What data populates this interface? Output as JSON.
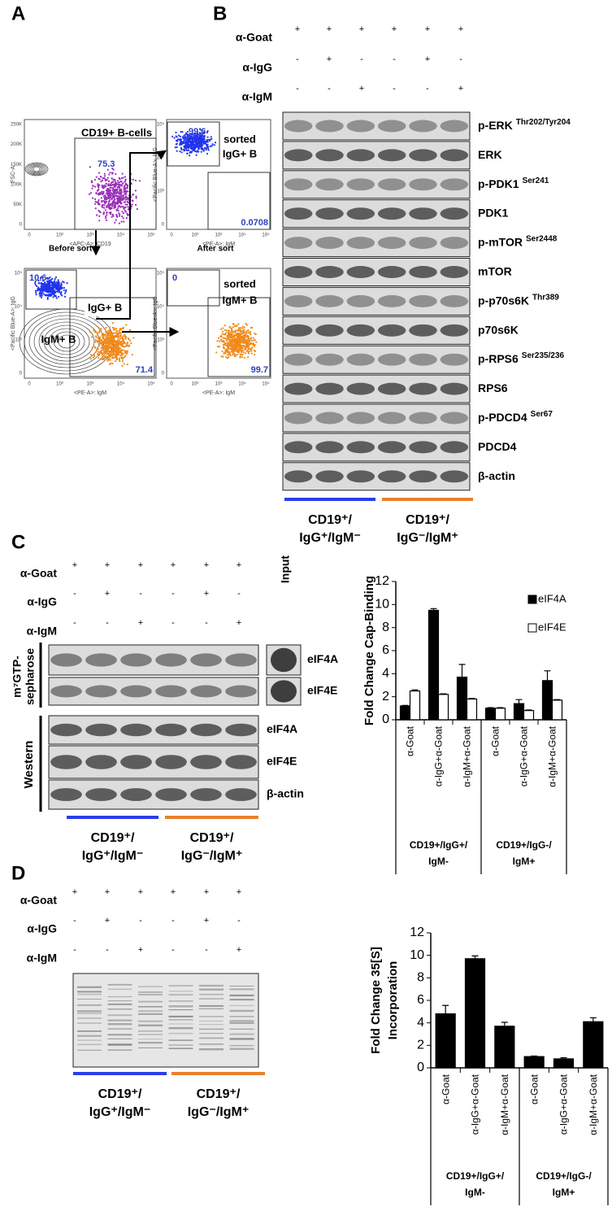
{
  "panel_a": {
    "label": "A",
    "x_ticks": [
      "0",
      "10²",
      "10³",
      "10⁴",
      "10⁵"
    ],
    "y_ticks": [
      "0",
      "10³",
      "10⁴",
      "10⁵"
    ],
    "fsc_ticks": [
      "0",
      "50K",
      "100K",
      "150K",
      "200K",
      "250K"
    ],
    "plots": [
      {
        "title": "CD19+ B-cells",
        "numbers": [
          75.3
        ],
        "y_label": "FSC-A",
        "x_label": "<APC-A>: CD19",
        "caption": "Before sort"
      },
      {
        "note": [
          "sorted",
          "IgG+ B"
        ],
        "numbers": [
          99.6,
          0.0708
        ],
        "y_label": "<Pacific Blue-A>: IgG",
        "x_label": "<PE-A>: IgM",
        "caption": "After sort"
      },
      {
        "gates": [
          "IgG+ B",
          "IgM+ B"
        ],
        "numbers": [
          10.6,
          71.4
        ],
        "y_label": "<Pacific Blue-A>: IgG",
        "x_label": "<PE-A>: IgM"
      },
      {
        "note": [
          "sorted",
          "IgM+ B"
        ],
        "numbers": [
          0,
          99.7
        ],
        "y_label": "<Pacific Blue-A>: IgG",
        "x_label": "<PE-A>: IgM"
      }
    ]
  },
  "panel_b": {
    "label": "B",
    "treatments": [
      {
        "label": "α-Goat",
        "signs": [
          "+",
          "+",
          "+",
          "+",
          "+",
          "+"
        ]
      },
      {
        "label": "α-IgG",
        "signs": [
          "-",
          "+",
          "-",
          "-",
          "+",
          "-"
        ]
      },
      {
        "label": "α-IgM",
        "signs": [
          "-",
          "-",
          "+",
          "-",
          "-",
          "+"
        ]
      }
    ],
    "blots": [
      {
        "name": "p-ERK",
        "site": "Thr202/Tyr204"
      },
      {
        "name": "ERK"
      },
      {
        "name": "p-PDK1",
        "site": "Ser241"
      },
      {
        "name": "PDK1"
      },
      {
        "name": "p-mTOR",
        "site": "Ser2448"
      },
      {
        "name": "mTOR"
      },
      {
        "name": "p-p70s6K",
        "site": "Thr389"
      },
      {
        "name": "p70s6K"
      },
      {
        "name": "p-RPS6",
        "site": "Ser235/236"
      },
      {
        "name": "RPS6"
      },
      {
        "name": "p-PDCD4",
        "site": "Ser67"
      },
      {
        "name": "PDCD4"
      },
      {
        "name": "β-actin"
      }
    ],
    "groups": [
      {
        "lines": [
          "CD19⁺/",
          "IgG⁺/IgM⁻"
        ]
      },
      {
        "lines": [
          "CD19⁺/",
          "IgG⁻/IgM⁺"
        ]
      }
    ]
  },
  "panel_c": {
    "label": "C",
    "treatments": [
      {
        "label": "α-Goat",
        "signs": [
          "+",
          "+",
          "+",
          "+",
          "+",
          "+"
        ]
      },
      {
        "label": "α-IgG",
        "signs": [
          "-",
          "+",
          "-",
          "-",
          "+",
          "-"
        ]
      },
      {
        "label": "α-IgM",
        "signs": [
          "-",
          "-",
          "+",
          "-",
          "-",
          "+"
        ]
      }
    ],
    "input_label": "Input",
    "pulldown_label": [
      "m⁷GTP-",
      "sepharose"
    ],
    "western_label": "Western",
    "pulldown_blots": [
      "eIF4A",
      "eIF4E"
    ],
    "western_blots": [
      "eIF4A",
      "eIF4E",
      "β-actin"
    ],
    "groups": [
      {
        "lines": [
          "CD19⁺/",
          "IgG⁺/IgM⁻"
        ]
      },
      {
        "lines": [
          "CD19⁺/",
          "IgG⁻/IgM⁺"
        ]
      }
    ]
  },
  "panel_d": {
    "label": "D",
    "treatments": [
      {
        "label": "α-Goat",
        "signs": [
          "+",
          "+",
          "+",
          "+",
          "+",
          "+"
        ]
      },
      {
        "label": "α-IgG",
        "signs": [
          "-",
          "+",
          "-",
          "-",
          "+",
          "-"
        ]
      },
      {
        "label": "α-IgM",
        "signs": [
          "-",
          "-",
          "+",
          "-",
          "-",
          "+"
        ]
      }
    ],
    "groups": [
      {
        "lines": [
          "CD19⁺/",
          "IgG⁺/IgM⁻"
        ]
      },
      {
        "lines": [
          "CD19⁺/",
          "IgG⁻/IgM⁺"
        ]
      }
    ]
  },
  "chart_data": [
    {
      "type": "bar",
      "y_label": [
        "Fold Change Cap-Binding"
      ],
      "categories": [
        "α-Goat",
        "α-IgG+α-Goat",
        "α-IgM+α-Goat",
        "α-Goat",
        "α-IgG+α-Goat",
        "α-IgM+α-Goat"
      ],
      "groups": [
        {
          "lines": [
            "CD19+/IgG+/",
            "IgM-"
          ]
        },
        {
          "lines": [
            "CD19+/IgG-/",
            "IgM+"
          ]
        }
      ],
      "series": [
        {
          "name": "eIF4A",
          "color": "#000000",
          "values": [
            1.2,
            9.5,
            3.7,
            1.0,
            1.4,
            3.4
          ],
          "errors": [
            0.05,
            0.15,
            1.1,
            0.05,
            0.35,
            0.85
          ]
        },
        {
          "name": "eIF4E",
          "color": "#ffffff",
          "values": [
            2.5,
            2.2,
            1.8,
            1.0,
            0.8,
            1.7
          ],
          "errors": [
            0.1,
            0.05,
            0.05,
            0.05,
            0.05,
            0.05
          ]
        }
      ],
      "legend": "upper right",
      "ylim": [
        0,
        12
      ],
      "yticks": [
        0,
        2,
        4,
        6,
        8,
        10,
        12
      ]
    },
    {
      "type": "bar",
      "y_label": [
        "Fold Change 35[S]",
        "Incorporation"
      ],
      "categories": [
        "α-Goat",
        "α-IgG+α-Goat",
        "α-IgM+α-Goat",
        "α-Goat",
        "α-IgG+α-Goat",
        "α-IgM+α-Goat"
      ],
      "groups": [
        {
          "lines": [
            "CD19+/IgG+/",
            "IgM-"
          ]
        },
        {
          "lines": [
            "CD19+/IgG-/",
            "IgM+"
          ]
        }
      ],
      "color": "#000000",
      "values": [
        4.8,
        9.7,
        3.7,
        1.0,
        0.8,
        4.1
      ],
      "errors": [
        0.75,
        0.25,
        0.35,
        0.05,
        0.1,
        0.35
      ],
      "ylim": [
        0,
        12
      ],
      "yticks": [
        0,
        2,
        4,
        6,
        8,
        10,
        12
      ]
    }
  ]
}
